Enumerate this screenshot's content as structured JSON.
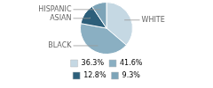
{
  "chart_data": {
    "type": "pie",
    "categories": [
      "WHITE",
      "BLACK",
      "ASIAN",
      "HISPANIC"
    ],
    "values": [
      36.3,
      41.6,
      12.8,
      9.3
    ],
    "value_labels": [
      "36.3%",
      "41.6%",
      "12.8%",
      "9.3%"
    ],
    "colors": [
      "#c5d8e3",
      "#8aafc2",
      "#2d5f7a",
      "#7da4b8"
    ],
    "legend": "bottom"
  }
}
